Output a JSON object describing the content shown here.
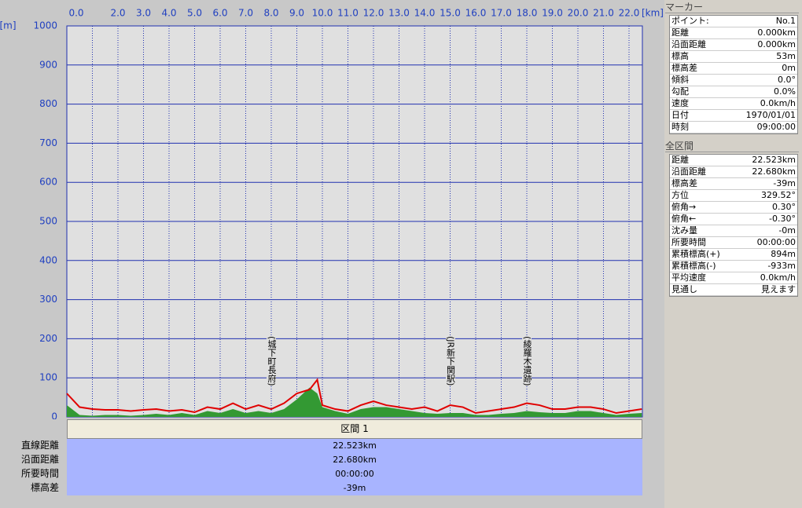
{
  "chart_data": {
    "type": "area-line",
    "x_unit": "[km]",
    "y_unit": "[m]",
    "xlim": [
      0,
      22.523
    ],
    "ylim": [
      0,
      1000
    ],
    "xticks": [
      {
        "value": 0,
        "label": "0.0"
      },
      {
        "value": 1,
        "label": null
      },
      {
        "value": 2,
        "label": "2.0"
      },
      {
        "value": 3,
        "label": "3.0"
      },
      {
        "value": 4,
        "label": "4.0"
      },
      {
        "value": 5,
        "label": "5.0"
      },
      {
        "value": 6,
        "label": "6.0"
      },
      {
        "value": 7,
        "label": "7.0"
      },
      {
        "value": 8,
        "label": "8.0"
      },
      {
        "value": 9,
        "label": "9.0"
      },
      {
        "value": 10,
        "label": "10.0"
      },
      {
        "value": 11,
        "label": "11.0"
      },
      {
        "value": 12,
        "label": "12.0"
      },
      {
        "value": 13,
        "label": "13.0"
      },
      {
        "value": 14,
        "label": "14.0"
      },
      {
        "value": 15,
        "label": "15.0"
      },
      {
        "value": 16,
        "label": "16.0"
      },
      {
        "value": 17,
        "label": "17.0"
      },
      {
        "value": 18,
        "label": "18.0"
      },
      {
        "value": 19,
        "label": "19.0"
      },
      {
        "value": 20,
        "label": "20.0"
      },
      {
        "value": 21,
        "label": "21.0"
      },
      {
        "value": 22,
        "label": "22.0"
      }
    ],
    "yticks": [
      0,
      100,
      200,
      300,
      400,
      500,
      600,
      700,
      800,
      900,
      1000
    ],
    "x": [
      0,
      0.5,
      1,
      1.5,
      2,
      2.5,
      3,
      3.5,
      4,
      4.5,
      5,
      5.5,
      6,
      6.5,
      7,
      7.5,
      8,
      8.5,
      9,
      9.5,
      9.8,
      10,
      10.5,
      11,
      11.5,
      12,
      12.5,
      13,
      13.5,
      14,
      14.5,
      15,
      15.5,
      16,
      16.5,
      17,
      17.5,
      18,
      18.5,
      19,
      19.5,
      20,
      20.5,
      21,
      21.5,
      22,
      22.5
    ],
    "series": [
      {
        "color": "#e00000",
        "values": [
          60,
          25,
          20,
          18,
          18,
          15,
          18,
          20,
          15,
          18,
          12,
          25,
          20,
          35,
          20,
          30,
          20,
          35,
          60,
          70,
          95,
          30,
          20,
          15,
          30,
          40,
          30,
          25,
          20,
          25,
          15,
          30,
          25,
          10,
          15,
          20,
          25,
          35,
          30,
          20,
          20,
          25,
          25,
          20,
          10,
          15,
          20
        ]
      },
      {
        "color": "#339933",
        "values": [
          30,
          5,
          3,
          5,
          5,
          3,
          5,
          8,
          5,
          10,
          5,
          15,
          10,
          20,
          10,
          15,
          10,
          20,
          45,
          75,
          60,
          25,
          15,
          8,
          20,
          25,
          25,
          20,
          15,
          10,
          8,
          10,
          10,
          5,
          5,
          8,
          10,
          15,
          12,
          10,
          10,
          15,
          15,
          10,
          5,
          8,
          10
        ]
      }
    ],
    "annotations": [
      {
        "text": "(城下町長府)",
        "x": 8.0
      },
      {
        "text": "(JR新下関駅)",
        "x": 15.0
      },
      {
        "text": "(綾羅木遺跡)",
        "x": 18.0
      }
    ]
  },
  "segment": {
    "header": "区間 1",
    "rows": [
      [
        "直線距離",
        "22.523km"
      ],
      [
        "沿面距離",
        "22.680km"
      ],
      [
        "所要時間",
        "00:00:00"
      ],
      [
        "標高差",
        "-39m"
      ]
    ]
  },
  "marker": {
    "title": "マーカー",
    "rows": [
      [
        "ポイント:",
        "No.1"
      ],
      [
        "距離",
        "0.000km"
      ],
      [
        "沿面距離",
        "0.000km"
      ],
      [
        "標高",
        "53m"
      ],
      [
        "標高差",
        "0m"
      ],
      [
        "傾斜",
        "0.0°"
      ],
      [
        "勾配",
        "0.0%"
      ],
      [
        "速度",
        "0.0km/h"
      ],
      [
        "日付",
        "1970/01/01"
      ],
      [
        "時刻",
        "09:00:00"
      ]
    ]
  },
  "total": {
    "title": "全区間",
    "rows": [
      [
        "距離",
        "22.523km"
      ],
      [
        "沿面距離",
        "22.680km"
      ],
      [
        "標高差",
        "-39m"
      ],
      [
        "方位",
        "329.52°"
      ],
      [
        "俯角→",
        "0.30°"
      ],
      [
        "俯角←",
        "-0.30°"
      ],
      [
        "沈み量",
        "-0m"
      ],
      [
        "所要時間",
        "00:00:00"
      ],
      [
        "累積標高(+)",
        "894m"
      ],
      [
        "累積標高(-)",
        "-933m"
      ],
      [
        "平均速度",
        "0.0km/h"
      ],
      [
        "見通し",
        "見えます"
      ]
    ]
  }
}
